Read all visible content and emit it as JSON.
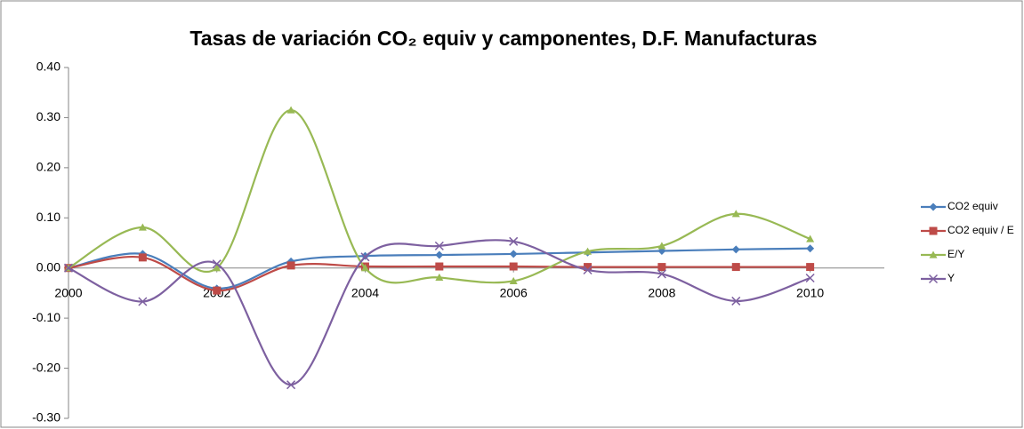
{
  "chart_data": {
    "type": "line",
    "smooth": true,
    "title": "Tasas de variación CO₂ equiv y camponentes, D.F. Manufacturas",
    "x": [
      2000,
      2001,
      2002,
      2003,
      2004,
      2005,
      2006,
      2007,
      2008,
      2009,
      2010
    ],
    "xlim": [
      2000,
      2011
    ],
    "xticks": [
      2000,
      2002,
      2004,
      2006,
      2008,
      2010
    ],
    "ylim": [
      -0.3,
      0.4
    ],
    "yticks": [
      {
        "value": -0.3,
        "label": "-0.30"
      },
      {
        "value": -0.2,
        "label": "-0.20"
      },
      {
        "value": -0.1,
        "label": "-0.10"
      },
      {
        "value": 0,
        "label": "0.00"
      },
      {
        "value": 0.1,
        "label": "0.10"
      },
      {
        "value": 0.2,
        "label": "0.20"
      },
      {
        "value": 0.3,
        "label": "0.30"
      },
      {
        "value": 0.4,
        "label": "0.40"
      }
    ],
    "grid": false,
    "legend": "right",
    "series": [
      {
        "name": "CO2 equiv",
        "color": "#4a7ebb",
        "marker": "diamond",
        "values": [
          0,
          0.028,
          -0.041,
          0.013,
          0.024,
          0.026,
          0.028,
          0.031,
          0.034,
          0.037,
          0.039
        ]
      },
      {
        "name": "CO2 equiv / E",
        "color": "#be4b48",
        "marker": "square",
        "values": [
          0,
          0.021,
          -0.045,
          0.005,
          0.003,
          0.003,
          0.003,
          0.002,
          0.002,
          0.002,
          0.002
        ]
      },
      {
        "name": "E/Y",
        "color": "#98b954",
        "marker": "triangle",
        "values": [
          0,
          0.081,
          0,
          0.315,
          0,
          -0.019,
          -0.026,
          0.033,
          0.044,
          0.108,
          0.058
        ]
      },
      {
        "name": "Y",
        "color": "#7d60a0",
        "marker": "x",
        "values": [
          0,
          -0.067,
          0.008,
          -0.233,
          0.022,
          0.044,
          0.053,
          -0.004,
          -0.012,
          -0.066,
          -0.02
        ]
      }
    ]
  }
}
